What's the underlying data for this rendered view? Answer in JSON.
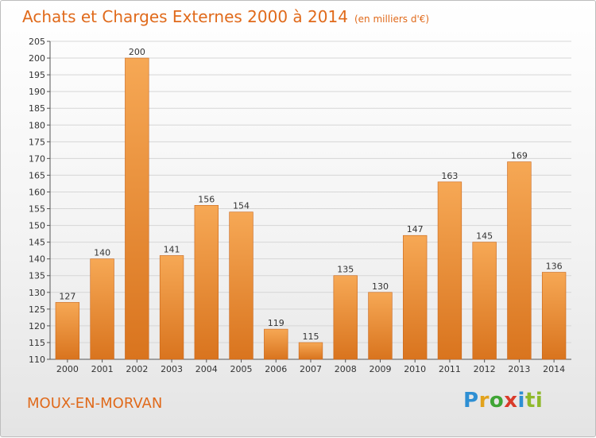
{
  "title": "Achats et Charges Externes 2000 à 2014",
  "unit": "(en milliers d'€)",
  "location": "MOUX-EN-MORVAN",
  "logo": {
    "text": "Proxiti",
    "letters": [
      "P",
      "r",
      "o",
      "x",
      "i",
      "ti"
    ]
  },
  "colors": {
    "accent": "#e06a1b",
    "bar_top": "#f6a855",
    "bar_bottom": "#d9741e",
    "grid": "#d6d6d6"
  },
  "chart_data": {
    "type": "bar",
    "title": "Achats et Charges Externes 2000 à 2014",
    "subtitle": "(en milliers d'€)",
    "xlabel": "",
    "ylabel": "",
    "categories": [
      "2000",
      "2001",
      "2002",
      "2003",
      "2004",
      "2005",
      "2006",
      "2007",
      "2008",
      "2009",
      "2010",
      "2011",
      "2012",
      "2013",
      "2014"
    ],
    "values": [
      127,
      140,
      200,
      141,
      156,
      154,
      119,
      115,
      135,
      130,
      147,
      163,
      145,
      169,
      136
    ],
    "ylim": [
      110,
      205
    ],
    "ytick_step": 5,
    "grid": true,
    "legend": "none"
  }
}
